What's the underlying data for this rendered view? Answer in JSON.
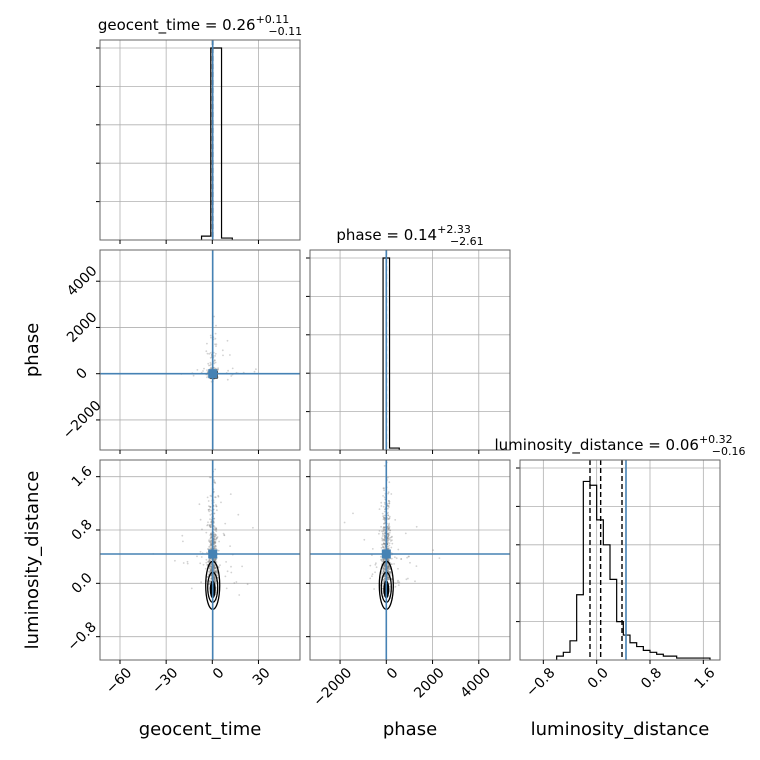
{
  "chart_data": {
    "type": "corner",
    "parameters": [
      "geocent_time",
      "phase",
      "luminosity_distance"
    ],
    "colors": {
      "truth": "#4682b4",
      "hist": "#000000",
      "scatter": "#7f7f7f",
      "grid": "#b0b0b0"
    },
    "panels": [
      {
        "id": "geocent_time",
        "type": "histogram",
        "title": {
          "prefix": "geocent_time = 0.26",
          "plus": "+0.11",
          "minus": "−0.11"
        },
        "xlim": [
          -73,
          57
        ],
        "bins": [
          {
            "x0": -7,
            "x1": -1,
            "count": 0.02
          },
          {
            "x0": -1,
            "x1": 6,
            "count": 1.0
          },
          {
            "x0": 6,
            "x1": 13,
            "count": 0.01
          }
        ],
        "quantile_lines": [
          0.15,
          0.26,
          0.37
        ],
        "truth": 0.26
      },
      {
        "id": "phase",
        "type": "histogram",
        "title": {
          "prefix": "phase = 0.14",
          "plus": "+2.33",
          "minus": "−2.61"
        },
        "xlim": [
          -3300,
          5350
        ],
        "bins": [
          {
            "x0": -140,
            "x1": 140,
            "count": 1.0
          },
          {
            "x0": 140,
            "x1": 560,
            "count": 0.01
          }
        ],
        "quantile_lines": [
          -2.47,
          0.14,
          2.47
        ],
        "truth": 0.14
      },
      {
        "id": "luminosity_distance",
        "type": "histogram",
        "title": {
          "prefix": "luminosity_distance = 0.06",
          "plus": "+0.32",
          "minus": "−0.16"
        },
        "xlim": [
          -1.15,
          1.85
        ],
        "bins": [
          {
            "x0": -0.6,
            "x1": -0.5,
            "count": 0.02
          },
          {
            "x0": -0.5,
            "x1": -0.4,
            "count": 0.04
          },
          {
            "x0": -0.4,
            "x1": -0.3,
            "count": 0.1
          },
          {
            "x0": -0.3,
            "x1": -0.2,
            "count": 0.34
          },
          {
            "x0": -0.2,
            "x1": -0.1,
            "count": 0.93
          },
          {
            "x0": -0.1,
            "x1": 0.0,
            "count": 0.91
          },
          {
            "x0": 0.0,
            "x1": 0.1,
            "count": 0.73
          },
          {
            "x0": 0.1,
            "x1": 0.2,
            "count": 0.6
          },
          {
            "x0": 0.2,
            "x1": 0.3,
            "count": 0.42
          },
          {
            "x0": 0.3,
            "x1": 0.4,
            "count": 0.2
          },
          {
            "x0": 0.4,
            "x1": 0.5,
            "count": 0.13
          },
          {
            "x0": 0.5,
            "x1": 0.6,
            "count": 0.09
          },
          {
            "x0": 0.6,
            "x1": 0.7,
            "count": 0.07
          },
          {
            "x0": 0.7,
            "x1": 0.8,
            "count": 0.05
          },
          {
            "x0": 0.8,
            "x1": 0.9,
            "count": 0.04
          },
          {
            "x0": 0.9,
            "x1": 1.0,
            "count": 0.03
          },
          {
            "x0": 1.0,
            "x1": 1.1,
            "count": 0.02
          },
          {
            "x0": 1.1,
            "x1": 1.2,
            "count": 0.02
          },
          {
            "x0": 1.2,
            "x1": 1.3,
            "count": 0.01
          },
          {
            "x0": 1.3,
            "x1": 1.4,
            "count": 0.01
          },
          {
            "x0": 1.4,
            "x1": 1.5,
            "count": 0.01
          },
          {
            "x0": 1.5,
            "x1": 1.6,
            "count": 0.01
          },
          {
            "x0": 1.6,
            "x1": 1.7,
            "count": 0.01
          }
        ],
        "quantile_lines": [
          -0.1,
          0.06,
          0.38
        ],
        "truth": 0.44
      }
    ],
    "pairs": [
      {
        "id": "phase-vs-geocent_time",
        "x": "geocent_time",
        "y": "phase",
        "xlim": [
          -73,
          57
        ],
        "ylim": [
          -3300,
          5350
        ],
        "truth": [
          0.26,
          0.14
        ]
      },
      {
        "id": "luminosity_distance-vs-geocent_time",
        "x": "geocent_time",
        "y": "luminosity_distance",
        "xlim": [
          -73,
          57
        ],
        "ylim": [
          -1.15,
          1.85
        ],
        "truth": [
          0.26,
          0.44
        ]
      },
      {
        "id": "luminosity_distance-vs-phase",
        "x": "phase",
        "y": "luminosity_distance",
        "xlim": [
          -3300,
          5350
        ],
        "ylim": [
          -1.15,
          1.85
        ],
        "truth": [
          0.14,
          0.44
        ]
      }
    ],
    "ticks": {
      "geocent_time": {
        "values": [
          -60,
          -30,
          0,
          30
        ],
        "labels": [
          "−60",
          "−30",
          "0",
          "30"
        ]
      },
      "phase": {
        "values": [
          -2000,
          0,
          2000,
          4000
        ],
        "labels": [
          "−2000",
          "0",
          "2000",
          "4000"
        ]
      },
      "luminosity_distance": {
        "values": [
          -0.8,
          0.0,
          0.8,
          1.6
        ],
        "labels": [
          "−0.8",
          "0.0",
          "0.8",
          "1.6"
        ]
      }
    },
    "axis_labels": {
      "x": [
        "geocent_time",
        "phase",
        "luminosity_distance"
      ],
      "y": [
        "phase",
        "luminosity_distance"
      ]
    },
    "grid": true
  }
}
